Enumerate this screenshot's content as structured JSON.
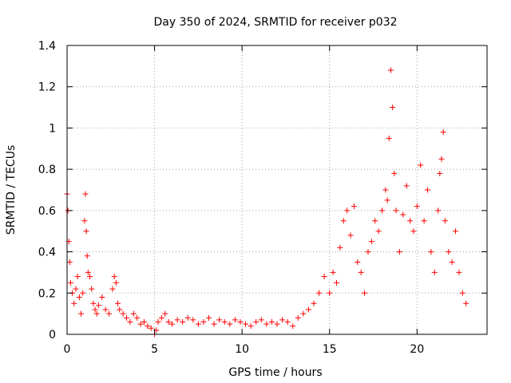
{
  "chart_data": {
    "type": "scatter",
    "title": "Day 350 of 2024, SRMTID for receiver p032",
    "xlabel": "GPS time / hours",
    "ylabel": "SRMTID / TECUs",
    "xlim": [
      0,
      24
    ],
    "ylim": [
      0,
      1.4
    ],
    "xticks": [
      0,
      5,
      10,
      15,
      20
    ],
    "xtick_labels": [
      "0",
      "5",
      "10",
      "15",
      "20"
    ],
    "yticks": [
      0,
      0.2,
      0.4,
      0.6,
      0.8,
      1.0,
      1.2,
      1.4
    ],
    "ytick_labels": [
      "0",
      "0.2",
      "0.4",
      "0.6",
      "0.8",
      "1",
      "1.2",
      "1.4"
    ],
    "grid": true,
    "marker": "+",
    "series": [
      {
        "name": "SRMTID",
        "color": "#ff0000",
        "x": [
          0.0,
          0.05,
          0.1,
          0.15,
          0.2,
          0.3,
          0.4,
          0.5,
          0.6,
          0.7,
          0.8,
          0.9,
          1.0,
          1.05,
          1.1,
          1.15,
          1.2,
          1.3,
          1.4,
          1.5,
          1.6,
          1.7,
          1.8,
          2.0,
          2.2,
          2.4,
          2.6,
          2.7,
          2.8,
          2.9,
          3.0,
          3.2,
          3.4,
          3.6,
          3.8,
          4.0,
          4.2,
          4.4,
          4.6,
          4.8,
          5.0,
          5.1,
          5.2,
          5.4,
          5.6,
          5.8,
          6.0,
          6.3,
          6.6,
          6.9,
          7.2,
          7.5,
          7.8,
          8.1,
          8.4,
          8.7,
          9.0,
          9.3,
          9.6,
          9.9,
          10.2,
          10.5,
          10.8,
          11.1,
          11.4,
          11.7,
          12.0,
          12.3,
          12.6,
          12.9,
          13.2,
          13.5,
          13.8,
          14.1,
          14.4,
          14.7,
          15.0,
          15.2,
          15.4,
          15.6,
          15.8,
          16.0,
          16.2,
          16.4,
          16.6,
          16.8,
          17.0,
          17.2,
          17.4,
          17.6,
          17.8,
          18.0,
          18.2,
          18.3,
          18.4,
          18.5,
          18.6,
          18.7,
          18.8,
          19.0,
          19.2,
          19.4,
          19.6,
          19.8,
          20.0,
          20.2,
          20.4,
          20.6,
          20.8,
          21.0,
          21.2,
          21.3,
          21.4,
          21.5,
          21.6,
          21.8,
          22.0,
          22.2,
          22.4,
          22.6,
          22.8
        ],
        "y": [
          0.68,
          0.6,
          0.45,
          0.35,
          0.25,
          0.2,
          0.15,
          0.22,
          0.28,
          0.18,
          0.1,
          0.2,
          0.55,
          0.68,
          0.5,
          0.38,
          0.3,
          0.28,
          0.22,
          0.15,
          0.12,
          0.1,
          0.14,
          0.18,
          0.12,
          0.1,
          0.22,
          0.28,
          0.25,
          0.15,
          0.12,
          0.1,
          0.08,
          0.06,
          0.1,
          0.08,
          0.05,
          0.06,
          0.04,
          0.03,
          0.0,
          0.02,
          0.06,
          0.08,
          0.1,
          0.06,
          0.05,
          0.07,
          0.06,
          0.08,
          0.07,
          0.05,
          0.06,
          0.08,
          0.05,
          0.07,
          0.06,
          0.05,
          0.07,
          0.06,
          0.05,
          0.04,
          0.06,
          0.07,
          0.05,
          0.06,
          0.05,
          0.07,
          0.06,
          0.04,
          0.08,
          0.1,
          0.12,
          0.15,
          0.2,
          0.28,
          0.2,
          0.3,
          0.25,
          0.42,
          0.55,
          0.6,
          0.48,
          0.62,
          0.35,
          0.3,
          0.2,
          0.4,
          0.45,
          0.55,
          0.5,
          0.6,
          0.7,
          0.65,
          0.95,
          1.28,
          1.1,
          0.78,
          0.6,
          0.4,
          0.58,
          0.72,
          0.55,
          0.5,
          0.62,
          0.82,
          0.55,
          0.7,
          0.4,
          0.3,
          0.6,
          0.78,
          0.85,
          0.98,
          0.55,
          0.4,
          0.35,
          0.5,
          0.3,
          0.2,
          0.15
        ]
      }
    ]
  }
}
